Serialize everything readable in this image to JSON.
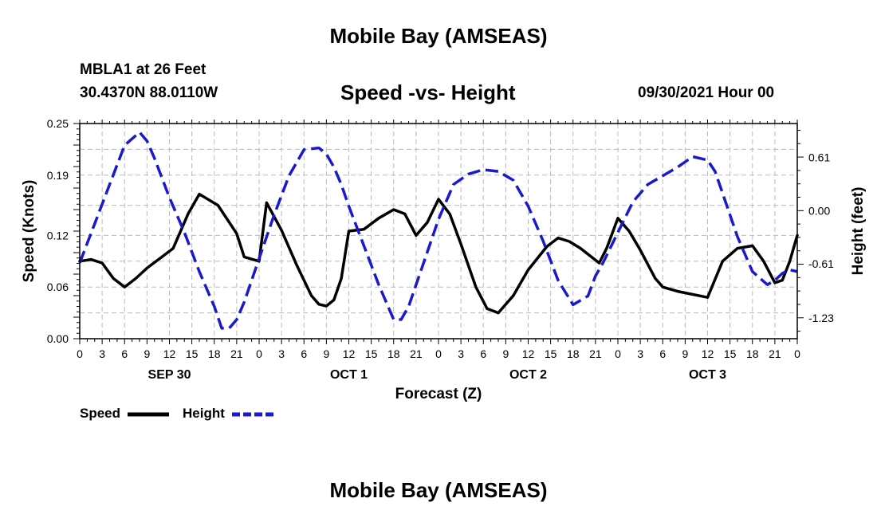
{
  "header": {
    "title": "Mobile Bay (AMSEAS)",
    "station": "MBLA1 at 26 Feet",
    "coordinates": "30.4370N  88.0110W",
    "plot_title": "Speed -vs- Height",
    "datestamp": "09/30/2021 Hour 00"
  },
  "footer": {
    "title": "Mobile Bay (AMSEAS)"
  },
  "legend": {
    "speed_label": "Speed",
    "height_label": "Height"
  },
  "colors": {
    "speed": "#000000",
    "height": "#1a1acc",
    "grid": "#bbbbbb"
  },
  "chart_data": {
    "type": "line",
    "title": "Speed -vs- Height",
    "xlabel": "Forecast (Z)",
    "ylabel": "Speed (Knots)",
    "y2label": "Height (feet)",
    "x_range_hours": [
      0,
      96
    ],
    "x_ticks": [
      {
        "hour": 0,
        "label": "0"
      },
      {
        "hour": 3,
        "label": "3"
      },
      {
        "hour": 6,
        "label": "6"
      },
      {
        "hour": 9,
        "label": "9"
      },
      {
        "hour": 12,
        "label": "12"
      },
      {
        "hour": 15,
        "label": "15"
      },
      {
        "hour": 18,
        "label": "18"
      },
      {
        "hour": 21,
        "label": "21"
      },
      {
        "hour": 24,
        "label": "0"
      },
      {
        "hour": 27,
        "label": "3"
      },
      {
        "hour": 30,
        "label": "6"
      },
      {
        "hour": 33,
        "label": "9"
      },
      {
        "hour": 36,
        "label": "12"
      },
      {
        "hour": 39,
        "label": "15"
      },
      {
        "hour": 42,
        "label": "18"
      },
      {
        "hour": 45,
        "label": "21"
      },
      {
        "hour": 48,
        "label": "0"
      },
      {
        "hour": 51,
        "label": "3"
      },
      {
        "hour": 54,
        "label": "6"
      },
      {
        "hour": 57,
        "label": "9"
      },
      {
        "hour": 60,
        "label": "12"
      },
      {
        "hour": 63,
        "label": "15"
      },
      {
        "hour": 66,
        "label": "18"
      },
      {
        "hour": 69,
        "label": "21"
      },
      {
        "hour": 72,
        "label": "0"
      },
      {
        "hour": 75,
        "label": "3"
      },
      {
        "hour": 78,
        "label": "6"
      },
      {
        "hour": 81,
        "label": "9"
      },
      {
        "hour": 84,
        "label": "12"
      },
      {
        "hour": 87,
        "label": "15"
      },
      {
        "hour": 90,
        "label": "18"
      },
      {
        "hour": 93,
        "label": "21"
      },
      {
        "hour": 96,
        "label": "0"
      }
    ],
    "day_labels": [
      {
        "hour": 12,
        "label": "SEP 30"
      },
      {
        "hour": 36,
        "label": "OCT 1"
      },
      {
        "hour": 60,
        "label": "OCT 2"
      },
      {
        "hour": 84,
        "label": "OCT 3"
      }
    ],
    "y_left": {
      "range": [
        0,
        0.25
      ],
      "ticks": [
        0.0,
        0.06,
        0.12,
        0.19,
        0.25
      ],
      "tick_labels": [
        "0.00",
        "0.06",
        "0.12",
        "0.19",
        "0.25"
      ]
    },
    "y_right": {
      "range": [
        -1.47,
        1.0
      ],
      "ticks": [
        0.61,
        0.0,
        -0.61,
        -1.23
      ],
      "tick_labels": [
        "0.61",
        "0.00",
        "-0.61",
        "-1.23"
      ]
    },
    "series": [
      {
        "name": "Speed",
        "axis": "left",
        "style": "solid",
        "x": [
          0,
          1.5,
          3,
          4.5,
          6,
          7.5,
          9,
          11,
          12.5,
          14.5,
          16,
          18.5,
          21,
          22,
          24,
          25,
          27,
          29,
          31,
          32,
          33,
          34,
          35,
          36,
          38,
          40,
          42,
          43.5,
          45,
          46.5,
          48,
          49.5,
          51,
          53,
          54.5,
          56,
          58,
          60,
          62.5,
          64,
          65.5,
          67,
          69.5,
          70.5,
          72,
          73.5,
          75,
          77,
          78,
          80,
          84,
          86,
          88,
          90,
          91.5,
          93,
          94,
          95,
          96
        ],
        "values": [
          0.09,
          0.092,
          0.088,
          0.07,
          0.06,
          0.07,
          0.082,
          0.095,
          0.105,
          0.145,
          0.168,
          0.155,
          0.122,
          0.095,
          0.09,
          0.158,
          0.126,
          0.086,
          0.05,
          0.04,
          0.038,
          0.045,
          0.07,
          0.125,
          0.127,
          0.14,
          0.15,
          0.145,
          0.12,
          0.135,
          0.162,
          0.145,
          0.11,
          0.06,
          0.035,
          0.03,
          0.05,
          0.08,
          0.107,
          0.117,
          0.113,
          0.105,
          0.088,
          0.105,
          0.14,
          0.125,
          0.103,
          0.07,
          0.06,
          0.055,
          0.048,
          0.09,
          0.105,
          0.108,
          0.09,
          0.065,
          0.068,
          0.09,
          0.12
        ]
      },
      {
        "name": "Height",
        "axis": "right",
        "style": "dashed",
        "x": [
          0,
          2,
          4,
          6,
          8,
          9,
          10,
          12,
          14,
          16,
          18,
          19,
          20,
          21,
          22,
          24,
          26,
          28,
          30,
          32,
          33,
          34,
          35,
          36,
          38,
          40,
          42,
          43,
          44,
          45,
          46,
          48,
          50,
          52,
          54,
          56,
          58,
          60,
          62,
          64,
          66,
          68,
          69,
          70,
          72,
          74,
          76,
          78,
          80,
          82,
          84,
          85,
          86,
          88,
          90,
          92,
          93,
          94,
          95,
          96
        ],
        "values": [
          -0.6,
          -0.15,
          0.3,
          0.75,
          0.9,
          0.8,
          0.6,
          0.15,
          -0.25,
          -0.7,
          -1.1,
          -1.35,
          -1.35,
          -1.25,
          -1.05,
          -0.55,
          -0.05,
          0.4,
          0.7,
          0.72,
          0.65,
          0.5,
          0.3,
          0.05,
          -0.4,
          -0.85,
          -1.25,
          -1.25,
          -1.1,
          -0.85,
          -0.6,
          -0.1,
          0.3,
          0.42,
          0.47,
          0.45,
          0.35,
          0.05,
          -0.35,
          -0.8,
          -1.08,
          -0.98,
          -0.75,
          -0.6,
          -0.25,
          0.1,
          0.3,
          0.4,
          0.5,
          0.62,
          0.58,
          0.45,
          0.2,
          -0.3,
          -0.7,
          -0.85,
          -0.8,
          -0.72,
          -0.68,
          -0.7
        ]
      }
    ]
  }
}
